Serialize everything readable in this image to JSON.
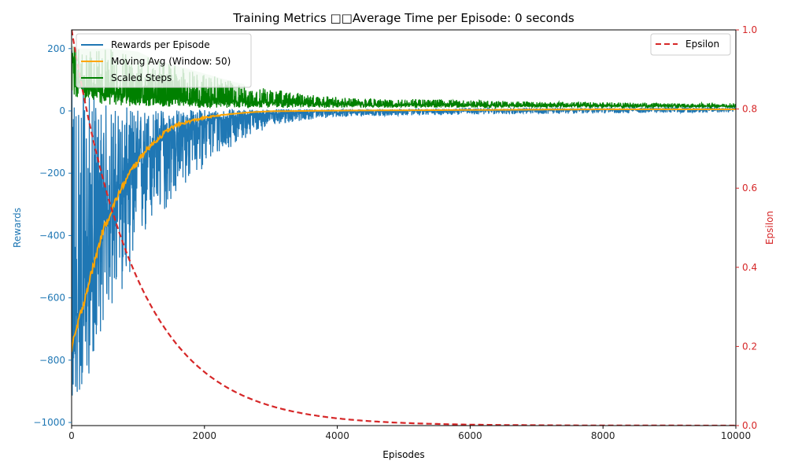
{
  "chart_data": {
    "type": "line",
    "title": "Training Metrics □□Average Time per Episode: 0 seconds",
    "xlabel": "Episodes",
    "ylabel_left": "Rewards",
    "ylabel_right": "Epsilon",
    "xlim": [
      0,
      10000
    ],
    "ylim_left": [
      -1010,
      260
    ],
    "ylim_right": [
      0,
      1
    ],
    "xticks": [
      0,
      2000,
      4000,
      6000,
      8000,
      10000
    ],
    "yticks_left": [
      -1000,
      -800,
      -600,
      -400,
      -200,
      0,
      200
    ],
    "yticks_right": [
      0.0,
      0.2,
      0.4,
      0.6,
      0.8,
      1.0
    ],
    "grid": false,
    "legend_left_position": "upper-left",
    "legend_right_position": "upper-right",
    "series": [
      {
        "name": "Rewards per Episode",
        "axis": "left",
        "color": "#1f77b4",
        "x": [
          0,
          100,
          200,
          300,
          400,
          500,
          600,
          700,
          800,
          1000,
          1200,
          1500,
          1800,
          2000,
          2500,
          3000,
          3500,
          4000,
          5000,
          6000,
          7000,
          8000,
          9000,
          10000
        ],
        "mean": [
          -770,
          -640,
          -560,
          -500,
          -420,
          -360,
          -300,
          -260,
          -220,
          -170,
          -120,
          -80,
          -50,
          -35,
          -18,
          -8,
          -4,
          -2,
          0,
          2,
          4,
          5,
          6,
          6
        ],
        "low": [
          -950,
          -920,
          -900,
          -820,
          -740,
          -660,
          -640,
          -620,
          -560,
          -460,
          -380,
          -300,
          -220,
          -180,
          -100,
          -50,
          -30,
          -20,
          -15,
          -12,
          -10,
          -8,
          -6,
          -5
        ],
        "high": [
          200,
          180,
          80,
          60,
          40,
          30,
          20,
          15,
          12,
          10,
          8,
          6,
          5,
          5,
          5,
          5,
          5,
          5,
          5,
          8,
          8,
          8,
          10,
          10
        ]
      },
      {
        "name": "Moving Avg (Window: 50)",
        "axis": "left",
        "color": "#ffa500",
        "x": [
          0,
          50,
          100,
          150,
          200,
          250,
          300,
          350,
          400,
          450,
          500,
          600,
          700,
          800,
          900,
          1000,
          1100,
          1200,
          1300,
          1400,
          1500,
          1600,
          1700,
          1800,
          2000,
          2200,
          2400,
          2600,
          2800,
          3000,
          3500,
          4000,
          5000,
          6000,
          7000,
          8000,
          9000,
          10000
        ],
        "values": [
          -770,
          -720,
          -680,
          -640,
          -600,
          -560,
          -520,
          -480,
          -440,
          -400,
          -370,
          -320,
          -270,
          -230,
          -190,
          -160,
          -130,
          -110,
          -90,
          -70,
          -55,
          -45,
          -38,
          -32,
          -22,
          -15,
          -10,
          -6,
          -3,
          -1,
          0,
          1,
          2,
          3,
          4,
          5,
          5,
          5
        ]
      },
      {
        "name": "Scaled Steps",
        "axis": "left",
        "color": "#008000",
        "x": [
          0,
          50,
          100,
          200,
          300,
          400,
          600,
          800,
          1000,
          1200,
          1500,
          2000,
          2500,
          3000,
          3500,
          4000,
          5000,
          6000,
          7000,
          8000,
          9000,
          10000
        ],
        "mean": [
          180,
          120,
          100,
          80,
          70,
          60,
          55,
          50,
          45,
          42,
          38,
          34,
          30,
          27,
          24,
          22,
          20,
          19,
          18,
          17,
          16,
          15
        ],
        "low": [
          40,
          40,
          35,
          30,
          25,
          20,
          18,
          16,
          15,
          14,
          12,
          10,
          10,
          10,
          10,
          10,
          10,
          10,
          10,
          10,
          10,
          10
        ],
        "high": [
          210,
          205,
          200,
          200,
          200,
          200,
          200,
          195,
          190,
          170,
          150,
          120,
          90,
          70,
          55,
          45,
          40,
          35,
          30,
          28,
          25,
          25
        ]
      },
      {
        "name": "Epsilon",
        "axis": "right",
        "color": "#d62728",
        "style": "dashed",
        "decay": "exponential",
        "x": [
          0,
          250,
          500,
          750,
          1000,
          1500,
          2000,
          2500,
          3000,
          3500,
          4000,
          5000,
          6000,
          7000,
          8000,
          9000,
          10000
        ],
        "values": [
          1.0,
          0.78,
          0.61,
          0.47,
          0.37,
          0.22,
          0.135,
          0.082,
          0.05,
          0.03,
          0.018,
          0.007,
          0.0025,
          0.001,
          0.0003,
          0.0001,
          0.0
        ]
      }
    ]
  }
}
